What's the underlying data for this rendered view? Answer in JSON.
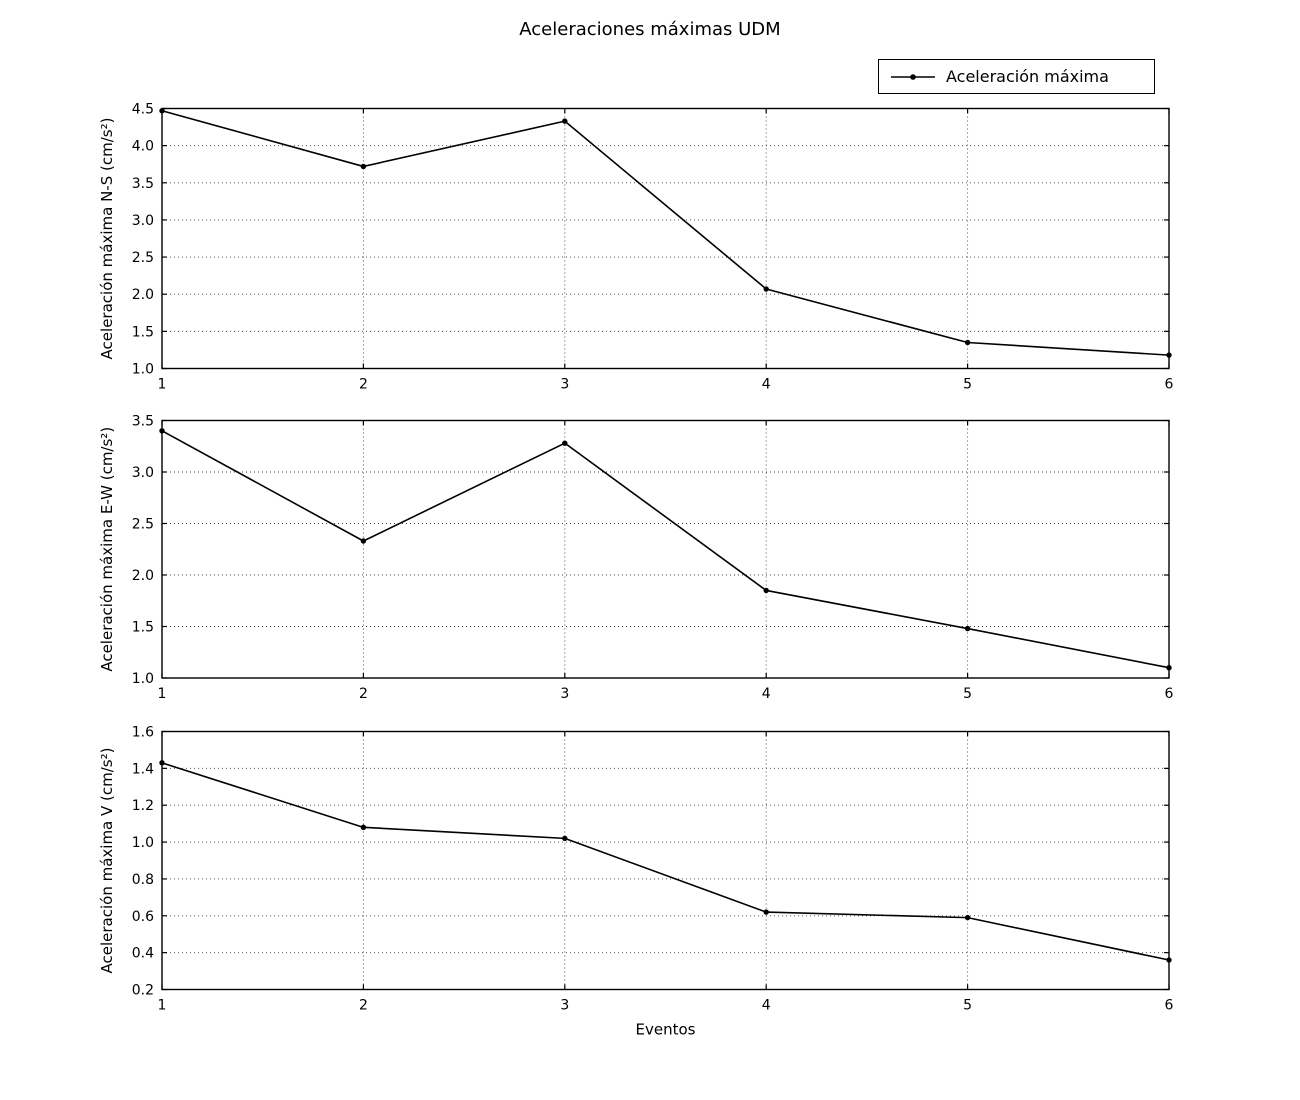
{
  "title": "Aceleraciones máximas UDM",
  "legend": {
    "label": "Aceleración máxima",
    "marker": "line-with-dot"
  },
  "colors": {
    "line": "#000000",
    "marker": "#000000",
    "grid_dotted": "#3c3c3c",
    "background": "#ffffff",
    "text": "#000000"
  },
  "chart_data": [
    {
      "type": "line",
      "ylabel": "Aceleración máxima N-S (cm/s²)",
      "xlabel": "",
      "x": [
        1,
        2,
        3,
        4,
        5,
        6
      ],
      "xtick_labels": [
        "1",
        "2",
        "3",
        "4",
        "5",
        "6"
      ],
      "series": [
        {
          "name": "Aceleración máxima",
          "values": [
            4.47,
            3.72,
            4.33,
            2.07,
            1.35,
            1.18
          ]
        }
      ],
      "xlim": [
        1,
        6
      ],
      "ylim": [
        1.0,
        4.5
      ],
      "yticks": [
        1.0,
        1.5,
        2.0,
        2.5,
        3.0,
        3.5,
        4.0,
        4.5
      ],
      "ytick_labels": [
        "1.0",
        "1.5",
        "2.0",
        "2.5",
        "3.0",
        "3.5",
        "4.0",
        "4.5"
      ],
      "grid": true,
      "legend_position": "figure upper right"
    },
    {
      "type": "line",
      "ylabel": "Aceleración máxima E-W (cm/s²)",
      "xlabel": "",
      "x": [
        1,
        2,
        3,
        4,
        5,
        6
      ],
      "xtick_labels": [
        "1",
        "2",
        "3",
        "4",
        "5",
        "6"
      ],
      "series": [
        {
          "name": "Aceleración máxima",
          "values": [
            3.4,
            2.33,
            3.28,
            1.85,
            1.48,
            1.1
          ]
        }
      ],
      "xlim": [
        1,
        6
      ],
      "ylim": [
        1.0,
        3.5
      ],
      "yticks": [
        1.0,
        1.5,
        2.0,
        2.5,
        3.0,
        3.5
      ],
      "ytick_labels": [
        "1.0",
        "1.5",
        "2.0",
        "2.5",
        "3.0",
        "3.5"
      ],
      "grid": true,
      "legend_position": "none"
    },
    {
      "type": "line",
      "ylabel": "Aceleración máxima V (cm/s²)",
      "xlabel": "Eventos",
      "x": [
        1,
        2,
        3,
        4,
        5,
        6
      ],
      "xtick_labels": [
        "1",
        "2",
        "3",
        "4",
        "5",
        "6"
      ],
      "series": [
        {
          "name": "Aceleración máxima",
          "values": [
            1.43,
            1.08,
            1.02,
            0.62,
            0.59,
            0.36
          ]
        }
      ],
      "xlim": [
        1,
        6
      ],
      "ylim": [
        0.2,
        1.6
      ],
      "yticks": [
        0.2,
        0.4,
        0.6,
        0.8,
        1.0,
        1.2,
        1.4,
        1.6
      ],
      "ytick_labels": [
        "0.2",
        "0.4",
        "0.6",
        "0.8",
        "1.0",
        "1.2",
        "1.4",
        "1.6"
      ],
      "grid": true,
      "legend_position": "none"
    }
  ]
}
